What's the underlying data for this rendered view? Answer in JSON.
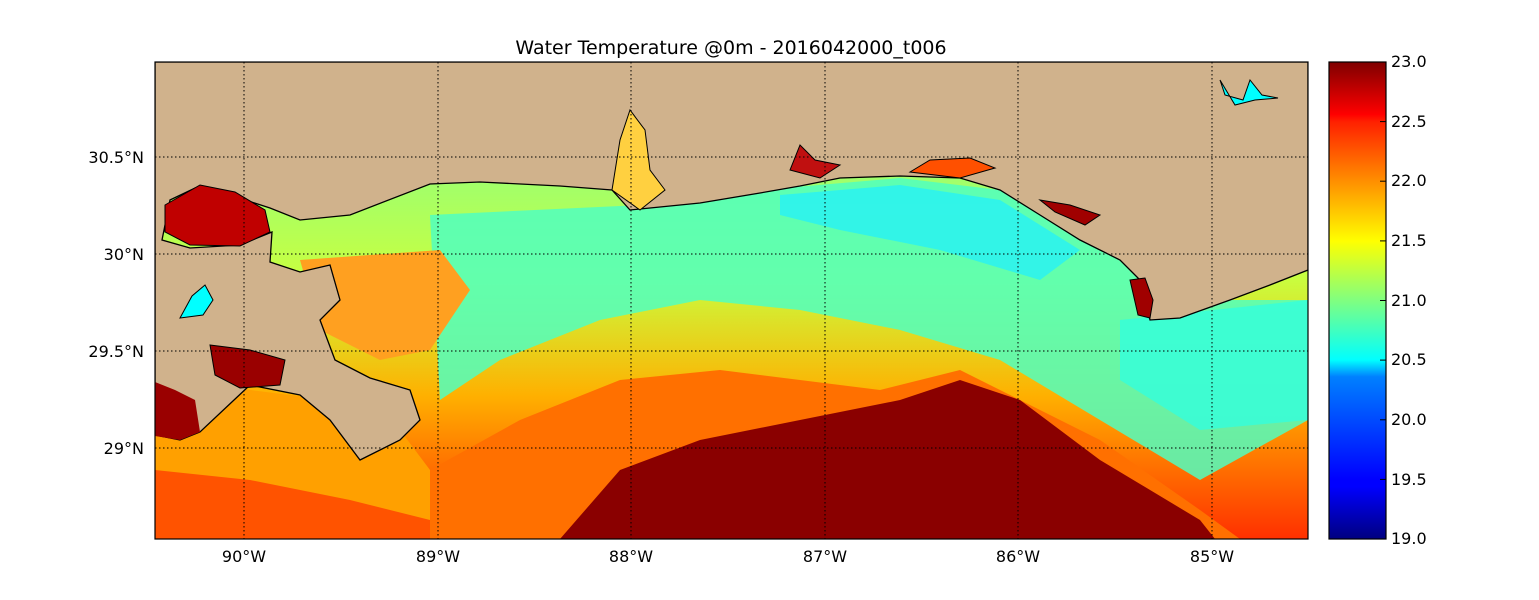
{
  "title": "Water Temperature @0m - 2016042000_t006",
  "map": {
    "lon_range": [
      -90.5,
      -84.5
    ],
    "lat_range": [
      28.55,
      31.0
    ],
    "lon_ticks": [
      "90°W",
      "89°W",
      "88°W",
      "87°W",
      "86°W",
      "85°W"
    ],
    "lat_ticks": [
      "30.5°N",
      "30°N",
      "29.5°N",
      "29°N"
    ],
    "grid": true,
    "land_color": "#d0b28c",
    "inland_water_color": "#00ffff"
  },
  "colorbar": {
    "ticks": [
      "23.0",
      "22.5",
      "22.0",
      "21.5",
      "21.0",
      "20.5",
      "20.0",
      "19.5",
      "19.0"
    ],
    "range": [
      19.0,
      23.0
    ],
    "colormap": "jet"
  }
}
